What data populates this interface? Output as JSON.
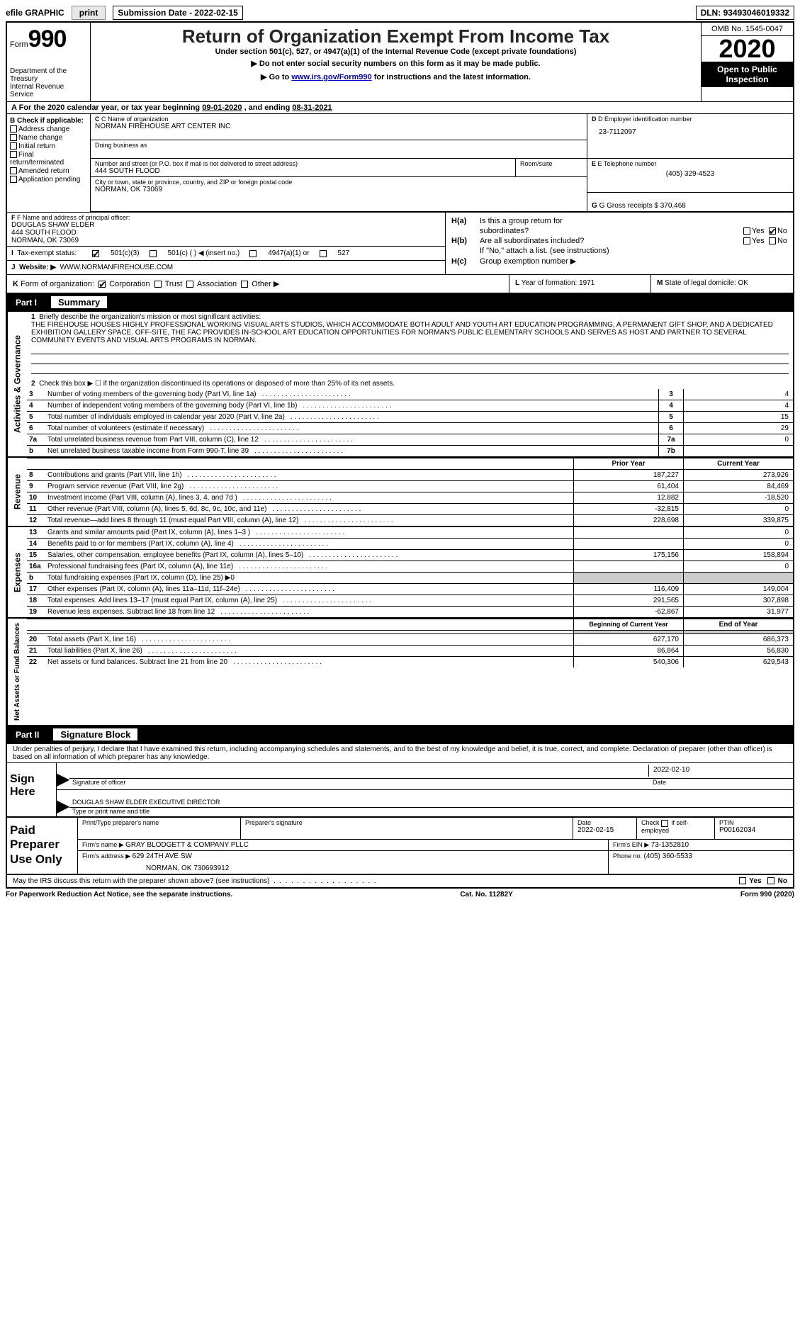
{
  "top_bar": {
    "efile_prefix": "efile",
    "efile_graphic": "GRAPHIC",
    "print_btn": "print",
    "submission_label": "Submission Date - ",
    "submission_date": "2022-02-15",
    "dln_label": "DLN: ",
    "dln": "93493046019332"
  },
  "header": {
    "form_small": "Form",
    "form_big": "990",
    "dept1": "Department of the Treasury",
    "dept2": "Internal Revenue Service",
    "title": "Return of Organization Exempt From Income Tax",
    "subtitle": "Under section 501(c), 527, or 4947(a)(1) of the Internal Revenue Code (except private foundations)",
    "inst1_prefix": "▶ Do not enter social security numbers on this form as it may be made public.",
    "inst2_prefix": "▶ Go to ",
    "inst2_link": "www.irs.gov/Form990",
    "inst2_suffix": " for instructions and the latest information.",
    "omb": "OMB No. 1545-0047",
    "year": "2020",
    "open_public": "Open to Public Inspection"
  },
  "row_a": {
    "prefix": "A",
    "text1": " For the 2020 calendar year, or tax year beginning ",
    "begin": "09-01-2020",
    "text2": " , and ending ",
    "end": "08-31-2021"
  },
  "col_b": {
    "header": "B Check if applicable:",
    "items": [
      "Address change",
      "Name change",
      "Initial return",
      "Final return/terminated",
      "Amended return",
      "Application pending"
    ]
  },
  "section_c": {
    "label": "C Name of organization",
    "org_name": "NORMAN FIREHOUSE ART CENTER INC",
    "dba_label": "Doing business as",
    "street_label": "Number and street (or P.O. box if mail is not delivered to street address)",
    "room_label": "Room/suite",
    "street": "444 SOUTH FLOOD",
    "city_label": "City or town, state or province, country, and ZIP or foreign postal code",
    "city": "NORMAN, OK  73069"
  },
  "section_d": {
    "label": "D Employer identification number",
    "ein": "23-7112097"
  },
  "section_e": {
    "label": "E Telephone number",
    "phone": "(405) 329-4523"
  },
  "section_g": {
    "label": "G Gross receipts $ ",
    "value": "370,468"
  },
  "section_f": {
    "label": "F Name and address of principal officer:",
    "name": "DOUGLAS SHAW ELDER",
    "street": "444 SOUTH FLOOD",
    "city": "NORMAN, OK  73069"
  },
  "section_h": {
    "ha_label": "H(a)",
    "ha_text1": "Is this a group return for",
    "ha_text2": "subordinates?",
    "hb_label": "H(b)",
    "hb_text1": "Are all subordinates included?",
    "hb_note": "If \"No,\" attach a list. (see instructions)",
    "hc_label": "H(c)",
    "hc_text": "Group exemption number ▶",
    "yes": "Yes",
    "no": "No"
  },
  "row_i": {
    "label": "I",
    "text": "Tax-exempt status:",
    "opt1": "501(c)(3)",
    "opt2": "501(c) (  ) ◀ (insert no.)",
    "opt3": "4947(a)(1) or",
    "opt4": "527"
  },
  "row_j": {
    "label": "J",
    "text": "Website: ▶",
    "value": "WWW.NORMANFIREHOUSE.COM"
  },
  "row_k": {
    "label": "K",
    "text": "Form of organization:",
    "opt1": "Corporation",
    "opt2": "Trust",
    "opt3": "Association",
    "opt4": "Other ▶"
  },
  "row_l": {
    "label": "L",
    "text": "Year of formation: ",
    "value": "1971"
  },
  "row_m": {
    "label": "M",
    "text": "State of legal domicile: ",
    "value": "OK"
  },
  "part1": {
    "label": "Part I",
    "title": "Summary"
  },
  "side_labels": {
    "activities": "Activities & Governance",
    "revenue": "Revenue",
    "expenses": "Expenses",
    "netassets": "Net Assets or Fund Balances"
  },
  "summary": {
    "line1_label": "Briefly describe the organization's mission or most significant activities:",
    "mission": "THE FIREHOUSE HOUSES HIGHLY PROFESSIONAL WORKING VISUAL ARTS STUDIOS, WHICH ACCOMMODATE BOTH ADULT AND YOUTH ART EDUCATION PROGRAMMING, A PERMANENT GIFT SHOP, AND A DEDICATED EXHIBITION GALLERY SPACE. OFF-SITE, THE FAC PROVIDES IN-SCHOOL ART EDUCATION OPPORTUNITIES FOR NORMAN'S PUBLIC ELEMENTARY SCHOOLS AND SERVES AS HOST AND PARTNER TO SEVERAL COMMUNITY EVENTS AND VISUAL ARTS PROGRAMS IN NORMAN.",
    "line2": "Check this box ▶ ☐ if the organization discontinued its operations or disposed of more than 25% of its net assets.",
    "lines": [
      {
        "n": "3",
        "t": "Number of voting members of the governing body (Part VI, line 1a)",
        "b": "3",
        "v": "4"
      },
      {
        "n": "4",
        "t": "Number of independent voting members of the governing body (Part VI, line 1b)",
        "b": "4",
        "v": "4"
      },
      {
        "n": "5",
        "t": "Total number of individuals employed in calendar year 2020 (Part V, line 2a)",
        "b": "5",
        "v": "15"
      },
      {
        "n": "6",
        "t": "Total number of volunteers (estimate if necessary)",
        "b": "6",
        "v": "29"
      },
      {
        "n": "7a",
        "t": "Total unrelated business revenue from Part VIII, column (C), line 12",
        "b": "7a",
        "v": "0"
      },
      {
        "n": "b",
        "t": "Net unrelated business taxable income from Form 990-T, line 39",
        "b": "7b",
        "v": ""
      }
    ],
    "prior_year": "Prior Year",
    "current_year": "Current Year",
    "rev_lines": [
      {
        "n": "8",
        "t": "Contributions and grants (Part VIII, line 1h)",
        "c1": "187,227",
        "c2": "273,926"
      },
      {
        "n": "9",
        "t": "Program service revenue (Part VIII, line 2g)",
        "c1": "61,404",
        "c2": "84,469"
      },
      {
        "n": "10",
        "t": "Investment income (Part VIII, column (A), lines 3, 4, and 7d )",
        "c1": "12,882",
        "c2": "-18,520"
      },
      {
        "n": "11",
        "t": "Other revenue (Part VIII, column (A), lines 5, 6d, 8c, 9c, 10c, and 11e)",
        "c1": "-32,815",
        "c2": "0"
      },
      {
        "n": "12",
        "t": "Total revenue—add lines 8 through 11 (must equal Part VIII, column (A), line 12)",
        "c1": "228,698",
        "c2": "339,875"
      }
    ],
    "exp_lines": [
      {
        "n": "13",
        "t": "Grants and similar amounts paid (Part IX, column (A), lines 1–3 )",
        "c1": "",
        "c2": "0"
      },
      {
        "n": "14",
        "t": "Benefits paid to or for members (Part IX, column (A), line 4)",
        "c1": "",
        "c2": "0"
      },
      {
        "n": "15",
        "t": "Salaries, other compensation, employee benefits (Part IX, column (A), lines 5–10)",
        "c1": "175,156",
        "c2": "158,894"
      },
      {
        "n": "16a",
        "t": "Professional fundraising fees (Part IX, column (A), line 11e)",
        "c1": "",
        "c2": "0"
      },
      {
        "n": "b",
        "t": "Total fundraising expenses (Part IX, column (D), line 25) ▶0",
        "c1": "gray",
        "c2": "gray"
      },
      {
        "n": "17",
        "t": "Other expenses (Part IX, column (A), lines 11a–11d, 11f–24e)",
        "c1": "116,409",
        "c2": "149,004"
      },
      {
        "n": "18",
        "t": "Total expenses. Add lines 13–17 (must equal Part IX, column (A), line 25)",
        "c1": "291,565",
        "c2": "307,898"
      },
      {
        "n": "19",
        "t": "Revenue less expenses. Subtract line 18 from line 12",
        "c1": "-62,867",
        "c2": "31,977"
      }
    ],
    "boy": "Beginning of Current Year",
    "eoy": "End of Year",
    "na_lines": [
      {
        "n": "20",
        "t": "Total assets (Part X, line 16)",
        "c1": "627,170",
        "c2": "686,373"
      },
      {
        "n": "21",
        "t": "Total liabilities (Part X, line 26)",
        "c1": "86,864",
        "c2": "56,830"
      },
      {
        "n": "22",
        "t": "Net assets or fund balances. Subtract line 21 from line 20",
        "c1": "540,306",
        "c2": "629,543"
      }
    ]
  },
  "part2": {
    "label": "Part II",
    "title": "Signature Block"
  },
  "sig": {
    "disclaimer": "Under penalties of perjury, I declare that I have examined this return, including accompanying schedules and statements, and to the best of my knowledge and belief, it is true, correct, and complete. Declaration of preparer (other than officer) is based on all information of which preparer has any knowledge.",
    "sign_here": "Sign Here",
    "sig_officer": "Signature of officer",
    "date_label": "Date",
    "sig_date": "2022-02-10",
    "officer_name": "DOUGLAS SHAW ELDER  EXECUTIVE DIRECTOR",
    "type_name": "Type or print name and title"
  },
  "prep": {
    "title": "Paid Preparer Use Only",
    "h1": "Print/Type preparer's name",
    "h2": "Preparer's signature",
    "h3": "Date",
    "h3_date": "2022-02-15",
    "h4a": "Check",
    "h4b": "if self-employed",
    "h5": "PTIN",
    "ptin": "P00162034",
    "firm_name_label": "Firm's name    ▶ ",
    "firm_name": "GRAY BLODGETT & COMPANY PLLC",
    "firm_ein_label": "Firm's EIN ▶ ",
    "firm_ein": "73-1352810",
    "firm_addr_label": "Firm's address ▶ ",
    "firm_addr1": "629 24TH AVE SW",
    "firm_addr2": "NORMAN, OK  730693912",
    "phone_label": "Phone no. ",
    "phone": "(405) 360-5533"
  },
  "discuss": {
    "text": "May the IRS discuss this return with the preparer shown above? (see instructions)",
    "yes": "Yes",
    "no": "No"
  },
  "footer": {
    "left": "For Paperwork Reduction Act Notice, see the separate instructions.",
    "center": "Cat. No. 11282Y",
    "right": "Form 990 (2020)"
  }
}
